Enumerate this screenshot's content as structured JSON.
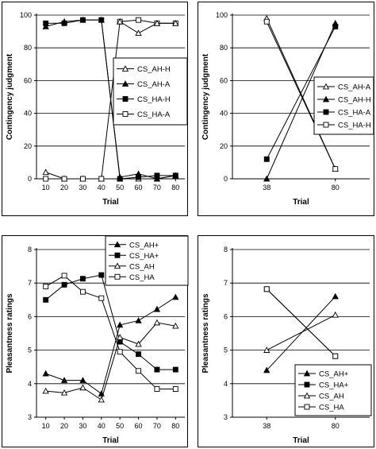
{
  "chart_data": [
    {
      "type": "line",
      "xlabel": "Trial",
      "ylabel": "Contingency judgment",
      "x": [
        10,
        20,
        30,
        40,
        50,
        60,
        70,
        80
      ],
      "ylim": [
        0,
        100
      ],
      "yticks": [
        0,
        20,
        40,
        60,
        80,
        100
      ],
      "grid": true,
      "legend_position": "center-right",
      "series": [
        {
          "name": "CS_AH-H",
          "marker": "open-triangle",
          "values": [
            4,
            0,
            0,
            0,
            0,
            0,
            0,
            2
          ]
        },
        {
          "name": "CS_AH-A",
          "marker": "filled-triangle",
          "values": [
            93,
            96,
            97,
            97,
            1,
            3,
            0,
            2
          ]
        },
        {
          "name": "CS_HA-H",
          "marker": "filled-square",
          "values": [
            95,
            95,
            97,
            97,
            0,
            1,
            2,
            2
          ]
        },
        {
          "name": "CS_HA-A",
          "marker": "open-square",
          "values": [
            0,
            0,
            0,
            0,
            96,
            97,
            95,
            95
          ]
        }
      ],
      "extra_line": {
        "marker": "open-triangle",
        "values": [
          null,
          null,
          null,
          null,
          96,
          89,
          95,
          95
        ]
      }
    },
    {
      "type": "line",
      "xlabel": "Trial",
      "ylabel": "Contingency judgment",
      "x": [
        38,
        80
      ],
      "ylim": [
        0,
        100
      ],
      "yticks": [
        0,
        20,
        40,
        60,
        80,
        100
      ],
      "grid": true,
      "legend_position": "center-right",
      "series": [
        {
          "name": "CS_AH-A",
          "marker": "open-triangle",
          "values": [
            98,
            6
          ]
        },
        {
          "name": "CS_AH-H",
          "marker": "filled-triangle",
          "values": [
            0,
            95
          ]
        },
        {
          "name": "CS_HA-A",
          "marker": "filled-square",
          "values": [
            12,
            93
          ]
        },
        {
          "name": "CS_HA-H",
          "marker": "open-square",
          "values": [
            96,
            6
          ]
        }
      ]
    },
    {
      "type": "line",
      "xlabel": "Trial",
      "ylabel": "Pleasantness ratings",
      "x": [
        10,
        20,
        30,
        40,
        50,
        60,
        70,
        80
      ],
      "ylim": [
        3,
        8
      ],
      "yticks": [
        3,
        4,
        5,
        6,
        7,
        8
      ],
      "grid": true,
      "legend_position": "top-right",
      "series": [
        {
          "name": "CS_AH+",
          "marker": "filled-triangle",
          "values": [
            4.3,
            4.1,
            4.1,
            3.7,
            5.75,
            5.88,
            6.22,
            6.58
          ]
        },
        {
          "name": "CS_HA+",
          "marker": "filled-square",
          "values": [
            6.5,
            6.95,
            7.13,
            7.24,
            5.25,
            4.88,
            4.42,
            4.42
          ]
        },
        {
          "name": "CS_AH",
          "marker": "open-triangle",
          "values": [
            3.78,
            3.73,
            3.88,
            3.52,
            5.38,
            5.18,
            5.82,
            5.72
          ]
        },
        {
          "name": "CS_HA",
          "marker": "open-square",
          "values": [
            6.9,
            7.22,
            6.74,
            6.55,
            4.95,
            4.38,
            3.84,
            3.84
          ]
        }
      ]
    },
    {
      "type": "line",
      "xlabel": "Trial",
      "ylabel": "Pleasantness ratings",
      "x": [
        38,
        80
      ],
      "ylim": [
        3,
        8
      ],
      "yticks": [
        3,
        4,
        5,
        6,
        7,
        8
      ],
      "grid": true,
      "legend_position": "bottom-right",
      "series": [
        {
          "name": "CS_AH+",
          "marker": "filled-triangle",
          "values": [
            4.4,
            6.6
          ]
        },
        {
          "name": "CS_HA+",
          "marker": "filled-square",
          "values": [
            6.82,
            4.82
          ]
        },
        {
          "name": "CS_AH",
          "marker": "open-triangle",
          "values": [
            5.0,
            6.05
          ]
        },
        {
          "name": "CS_HA",
          "marker": "open-square",
          "values": [
            6.82,
            4.82
          ]
        }
      ]
    }
  ]
}
